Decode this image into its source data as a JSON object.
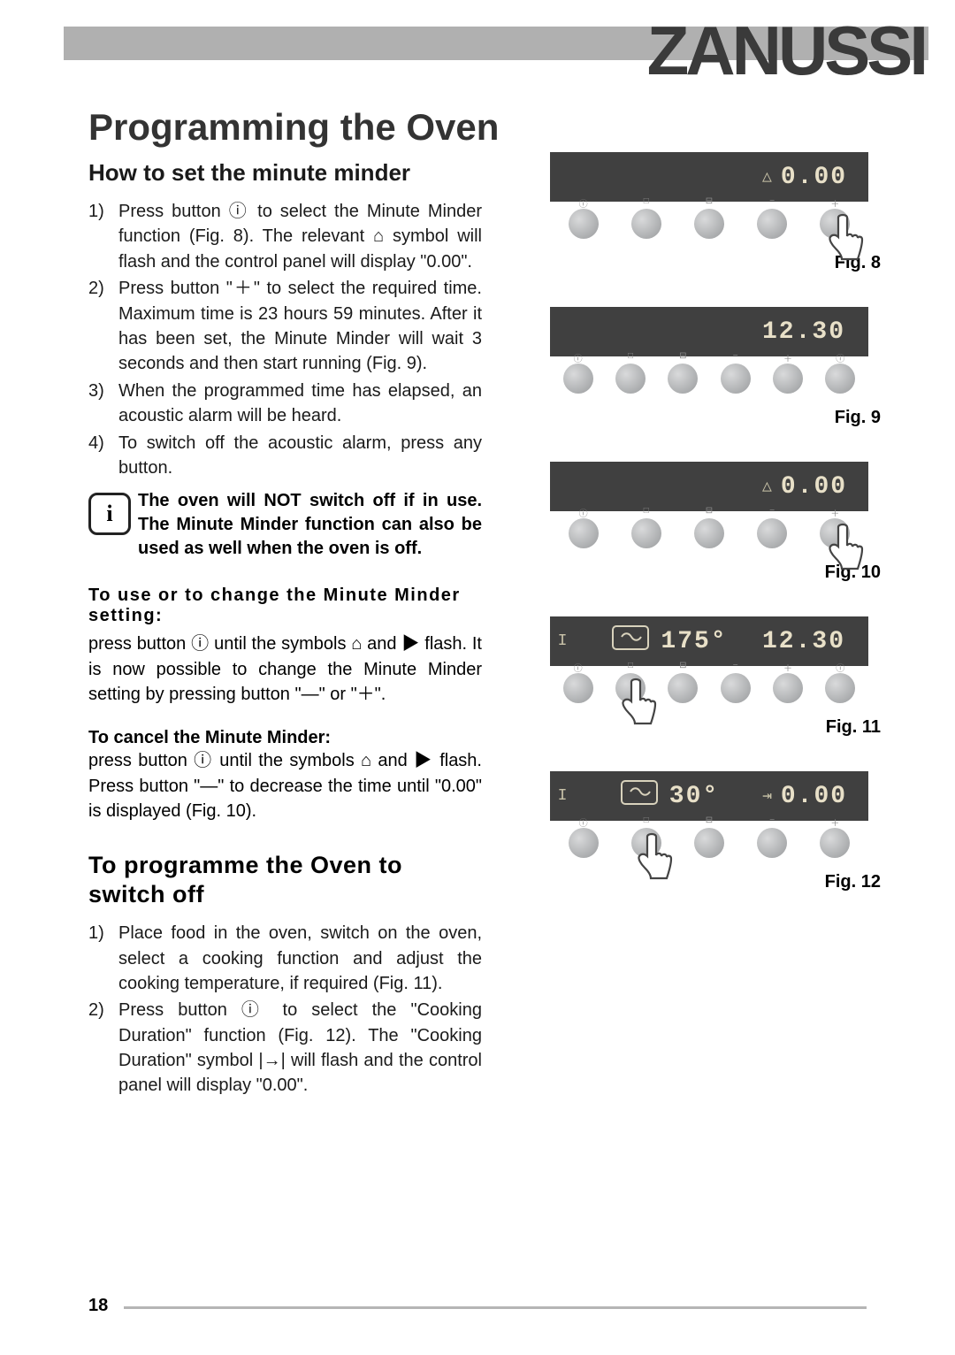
{
  "brand": "ZANUSSI",
  "page_number": "18",
  "title": "Programming the Oven",
  "section1": {
    "heading": "How to set the minute minder",
    "steps": [
      "Press button ⓘ to select the Minute Minder function (Fig. 8). The relevant ⌂ symbol will flash and the control panel will display \"0.00\".",
      "Press button \"＋\" to select the required time. Maximum time is 23 hours 59 minutes. After it has been set, the Minute Minder will wait 3 seconds and then start running (Fig. 9).",
      "When the programmed time has elapsed, an acoustic alarm will be heard.",
      "To switch off the acoustic alarm, press any button."
    ],
    "info_note": "The oven will NOT switch off if in use. The Minute Minder function can also be used as well when the oven is off.",
    "subhead_change": "To use or to change the Minute Minder setting:",
    "para_change": "press button ⓘ until the symbols ⌂ and ▶ flash. It is now possible to change the Minute Minder setting by pressing button \"—\" or \"＋\".",
    "subhead_cancel": "To cancel the Minute Minder:",
    "para_cancel": "press button ⓘ until the symbols ⌂ and ▶ flash. Press button \"—\" to decrease the time until \"0.00\" is displayed (Fig. 10)."
  },
  "section2": {
    "heading": "To programme the Oven to switch off",
    "steps": [
      "Place food in the oven, switch on the oven, select a cooking function and adjust the cooking temperature, if required (Fig. 11).",
      "Press button ⓘ to select the \"Cooking Duration\" function (Fig. 12). The \"Cooking Duration\" symbol |→| will flash and the control panel will display \"0.00\"."
    ]
  },
  "figures": {
    "fig8": {
      "label": "Fig. 8",
      "display_left": "",
      "display_mid": "",
      "display_right_sym": "△",
      "display_right": "0.00",
      "hand": true,
      "button_count": 5,
      "oven_icon": false
    },
    "fig9": {
      "label": "Fig. 9",
      "display_left": "",
      "display_mid": "",
      "display_right_sym": "",
      "display_right": "12.30",
      "hand": false,
      "button_count": 6,
      "oven_icon": false
    },
    "fig10": {
      "label": "Fig. 10",
      "display_left": "",
      "display_mid": "",
      "display_right_sym": "△",
      "display_right": "0.00",
      "hand": true,
      "button_count": 5,
      "oven_icon": false
    },
    "fig11": {
      "label": "Fig. 11",
      "display_left": "I",
      "display_mid": "175°",
      "display_right_sym": "",
      "display_right": "12.30",
      "hand": true,
      "button_count": 6,
      "oven_icon": true,
      "hand_pos": 1
    },
    "fig12": {
      "label": "Fig. 12",
      "display_left": "I",
      "display_mid": "30°",
      "display_right_sym": "⇥",
      "display_right": "0.00",
      "hand": true,
      "button_count": 5,
      "oven_icon": true,
      "hand_pos": 1
    }
  },
  "button_labels": [
    "ⓘ",
    "□",
    "⊟",
    "−",
    "＋",
    "ⓘ"
  ],
  "colors": {
    "header_bar": "#b0b0b0",
    "brand_text": "#3a3a3a",
    "display_bg": "#404040",
    "display_text": "#e8e0c8",
    "button_light": "#d9dadb",
    "button_dark": "#989a9c",
    "body_text": "#1a1a1a"
  }
}
